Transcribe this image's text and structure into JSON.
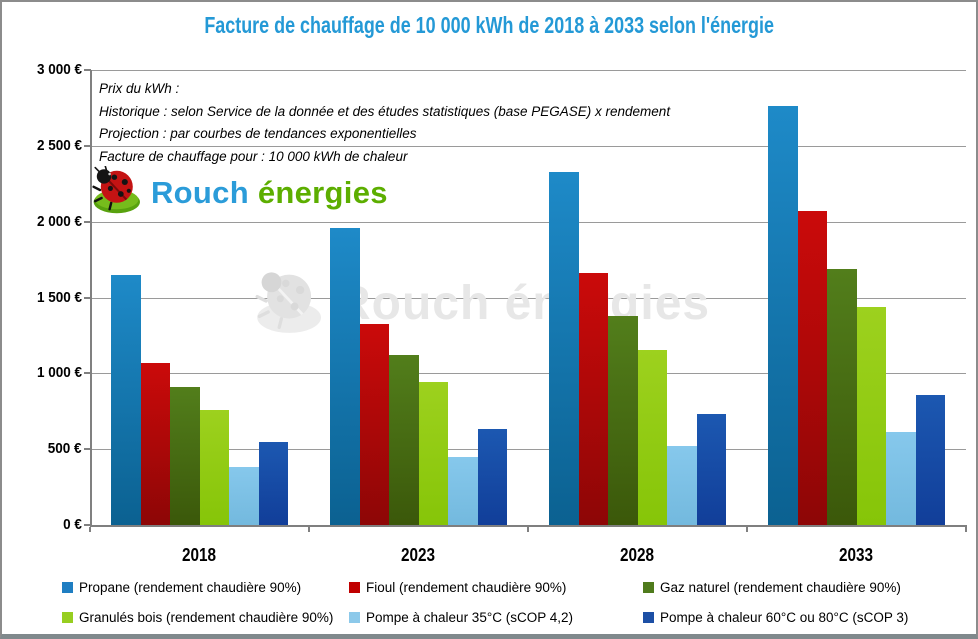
{
  "title": "Facture de chauffage de 10 000 kWh de 2018 à 2033 selon l'énergie",
  "annotation": {
    "lines": [
      "Prix du kWh :",
      "Historique : selon Service de la donnée et des études statistiques (base PEGASE) x rendement",
      "Projection : par courbes de tendances exponentielles",
      "Facture de chauffage pour : 10 000 kWh de chaleur"
    ]
  },
  "logo": {
    "word_primary": "Rouch",
    "word_secondary": "énergies"
  },
  "watermark": {
    "text": "Rouch énergies"
  },
  "colors": {
    "title": "#2499d6",
    "gridline": "#9a9a9a",
    "axis": "#808080",
    "watermark_gray": "#e7e7e7"
  },
  "chart_data": {
    "type": "bar",
    "title": "Facture de chauffage de 10 000 kWh de 2018 à 2033 selon l'énergie",
    "xlabel": "",
    "ylabel": "",
    "ylim": [
      0,
      3000
    ],
    "ytick_step": 500,
    "ytick_labels": [
      "0 €",
      "500 €",
      "1 000 €",
      "1 500 €",
      "2 000 €",
      "2 500 €",
      "3 000 €"
    ],
    "grid": true,
    "legend_position": "bottom",
    "categories": [
      "2018",
      "2023",
      "2028",
      "2033"
    ],
    "series": [
      {
        "key": "propane",
        "name": "Propane (rendement chaudière 90%)",
        "values": [
          1650,
          1955,
          2330,
          2765
        ],
        "legend_color": "#1f7ec2",
        "color_top": "#1e8ac8",
        "color_bottom": "#0b6191"
      },
      {
        "key": "fioul",
        "name": "Fioul  (rendement chaudière 90%)",
        "values": [
          1065,
          1325,
          1660,
          2070
        ],
        "legend_color": "#c00000",
        "color_top": "#cb0a0a",
        "color_bottom": "#8d0606"
      },
      {
        "key": "gaz-naturel",
        "name": "Gaz naturel (rendement chaudière 90%)",
        "values": [
          910,
          1120,
          1380,
          1690
        ],
        "legend_color": "#4f7b1c",
        "color_top": "#527e1b",
        "color_bottom": "#3b580a"
      },
      {
        "key": "granules-bois",
        "name": "Granulés bois (rendement chaudière 90%)",
        "values": [
          760,
          945,
          1155,
          1435
        ],
        "legend_color": "#97ce20",
        "color_top": "#9dd11e",
        "color_bottom": "#86c508"
      },
      {
        "key": "pac-35",
        "name": "Pompe à chaleur 35°C (sCOP 4,2)",
        "values": [
          385,
          450,
          520,
          610
        ],
        "legend_color": "#8cc9ea",
        "color_top": "#86c8ec",
        "color_bottom": "#73b9de"
      },
      {
        "key": "pac-60-80",
        "name": "Pompe à chaleur 60°C ou 80°C (sCOP 3)",
        "values": [
          545,
          630,
          730,
          855
        ],
        "legend_color": "#1c4fa5",
        "color_top": "#1c58b1",
        "color_bottom": "#113e99"
      }
    ]
  }
}
